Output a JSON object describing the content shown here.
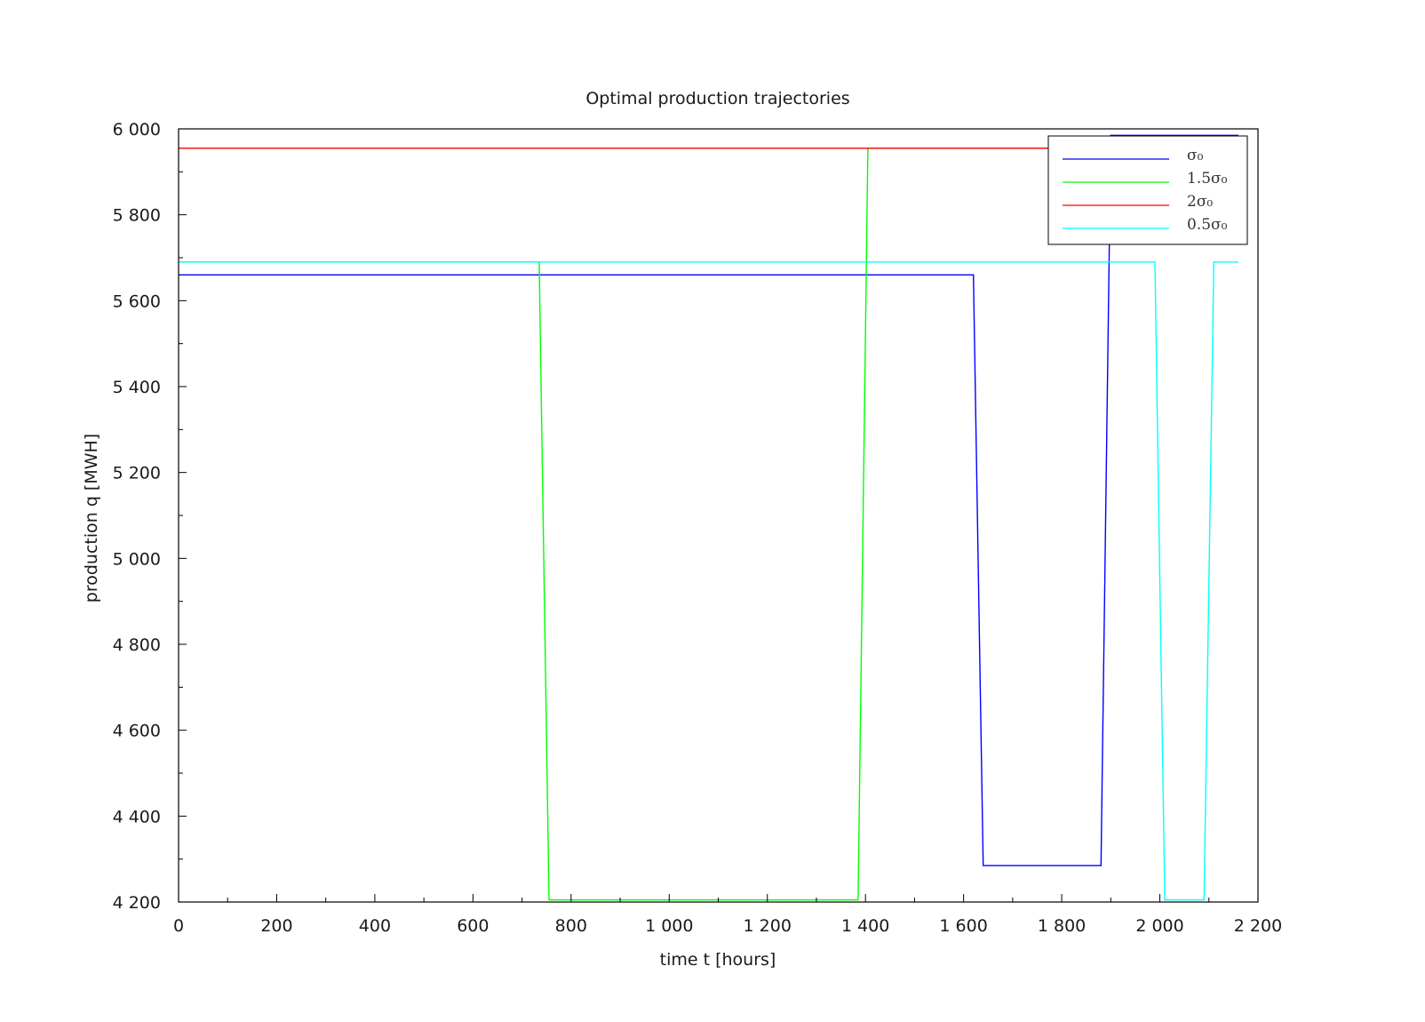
{
  "chart_data": {
    "type": "line",
    "title": "Optimal production trajectories",
    "xlabel": "time t [hours]",
    "ylabel": "production q [MWH]",
    "xlim": [
      0,
      2200
    ],
    "ylim": [
      4200,
      6000
    ],
    "x_ticks": [
      0,
      200,
      400,
      600,
      800,
      1000,
      1200,
      1400,
      1600,
      1800,
      2000,
      2200
    ],
    "x_tick_labels": [
      "0",
      "200",
      "400",
      "600",
      "800",
      "1 000",
      "1 200",
      "1 400",
      "1 600",
      "1 800",
      "2 000",
      "2 200"
    ],
    "y_ticks": [
      4200,
      4400,
      4600,
      4800,
      5000,
      5200,
      5400,
      5600,
      5800,
      6000
    ],
    "y_tick_labels": [
      "4 200",
      "4 400",
      "4 600",
      "4 800",
      "5 000",
      "5 200",
      "5 400",
      "5 600",
      "5 800",
      "6 000"
    ],
    "grid": false,
    "legend_position": "top-right",
    "series": [
      {
        "name": "σ₀",
        "color": "#0000ff",
        "x": [
          0,
          1620,
          1640,
          1880,
          1900,
          2160
        ],
        "y": [
          5660,
          5660,
          4285,
          4285,
          5985,
          5985
        ]
      },
      {
        "name": "1.5σ₀",
        "color": "#00ff00",
        "x": [
          0,
          735,
          755,
          1385,
          1405,
          2160
        ],
        "y": [
          5690,
          5690,
          4205,
          4205,
          5955,
          5955
        ]
      },
      {
        "name": "2σ₀",
        "color": "#ff0000",
        "x": [
          0,
          2160
        ],
        "y": [
          5955,
          5955
        ]
      },
      {
        "name": "0.5σ₀",
        "color": "#00ffff",
        "x": [
          0,
          1990,
          2010,
          2090,
          2110,
          2160
        ],
        "y": [
          5690,
          5690,
          4205,
          4205,
          5690,
          5690
        ]
      }
    ]
  }
}
